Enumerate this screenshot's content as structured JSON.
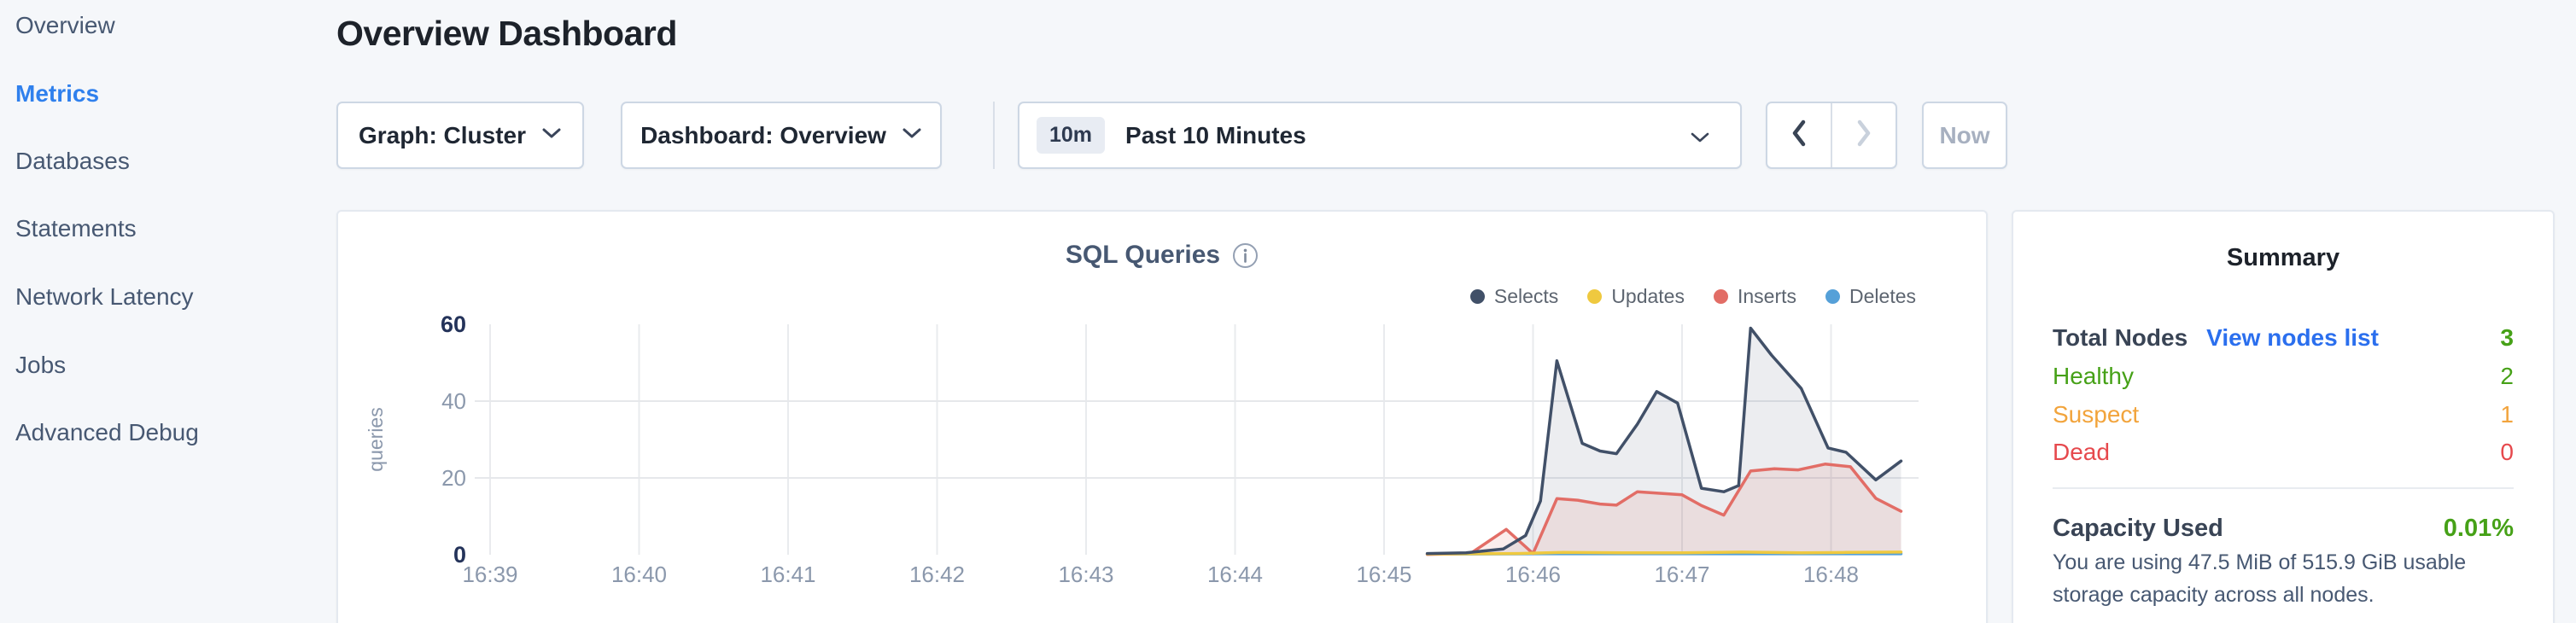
{
  "sidebar": {
    "items": [
      {
        "label": "Overview",
        "active": false
      },
      {
        "label": "Metrics",
        "active": true
      },
      {
        "label": "Databases",
        "active": false
      },
      {
        "label": "Statements",
        "active": false
      },
      {
        "label": "Network Latency",
        "active": false
      },
      {
        "label": "Jobs",
        "active": false
      },
      {
        "label": "Advanced Debug",
        "active": false
      }
    ]
  },
  "header": {
    "title": "Overview Dashboard"
  },
  "toolbar": {
    "graph_label": "Graph: Cluster",
    "dashboard_label": "Dashboard: Overview",
    "time_badge": "10m",
    "time_label": "Past 10 Minutes",
    "now_label": "Now"
  },
  "chart_data": {
    "type": "area",
    "title": "SQL Queries",
    "ylabel": "queries",
    "xlabel": "",
    "x_ticks": [
      "16:39",
      "16:40",
      "16:41",
      "16:42",
      "16:43",
      "16:44",
      "16:45",
      "16:46",
      "16:47",
      "16:48"
    ],
    "y_ticks": [
      0,
      20,
      40,
      60
    ],
    "ylim": [
      0,
      60
    ],
    "x_minutes_range": [
      0,
      9.47
    ],
    "grid": true,
    "legend_position": "top-right",
    "series": [
      {
        "name": "Selects",
        "color": "#415068",
        "fill": "rgba(65,80,104,0.10)",
        "points": [
          [
            6.29,
            0.3
          ],
          [
            6.55,
            0.5
          ],
          [
            6.8,
            1.5
          ],
          [
            6.95,
            5
          ],
          [
            7.05,
            14
          ],
          [
            7.16,
            50.5
          ],
          [
            7.33,
            29
          ],
          [
            7.45,
            27
          ],
          [
            7.56,
            26.3
          ],
          [
            7.7,
            34
          ],
          [
            7.83,
            42.5
          ],
          [
            7.97,
            39.5
          ],
          [
            8.13,
            17.3
          ],
          [
            8.28,
            16.4
          ],
          [
            8.38,
            18
          ],
          [
            8.46,
            59
          ],
          [
            8.6,
            52
          ],
          [
            8.8,
            43.3
          ],
          [
            8.98,
            27.8
          ],
          [
            9.1,
            26.7
          ],
          [
            9.3,
            19.5
          ],
          [
            9.47,
            24.4
          ]
        ]
      },
      {
        "name": "Updates",
        "color": "#efc93f",
        "fill": "none",
        "points": [
          [
            6.29,
            0.2
          ],
          [
            6.9,
            0.3
          ],
          [
            7.2,
            0.6
          ],
          [
            7.6,
            0.5
          ],
          [
            8.0,
            0.5
          ],
          [
            8.4,
            0.7
          ],
          [
            8.8,
            0.5
          ],
          [
            9.1,
            0.6
          ],
          [
            9.47,
            0.7
          ]
        ]
      },
      {
        "name": "Inserts",
        "color": "#e26d66",
        "fill": "rgba(226,109,102,0.12)",
        "points": [
          [
            6.29,
            0.1
          ],
          [
            6.58,
            0.3
          ],
          [
            6.82,
            6.6
          ],
          [
            7.0,
            0.3
          ],
          [
            7.16,
            14.6
          ],
          [
            7.3,
            14.2
          ],
          [
            7.45,
            13.2
          ],
          [
            7.56,
            12.9
          ],
          [
            7.7,
            16.4
          ],
          [
            7.85,
            16.0
          ],
          [
            8.0,
            15.6
          ],
          [
            8.13,
            12.8
          ],
          [
            8.28,
            10.3
          ],
          [
            8.46,
            21.8
          ],
          [
            8.62,
            22.4
          ],
          [
            8.78,
            22.1
          ],
          [
            8.96,
            23.6
          ],
          [
            9.13,
            22.9
          ],
          [
            9.3,
            14.7
          ],
          [
            9.47,
            11.3
          ]
        ]
      },
      {
        "name": "Deletes",
        "color": "#55a0d8",
        "fill": "none",
        "points": [
          [
            6.29,
            0.15
          ],
          [
            7.0,
            0.25
          ],
          [
            7.5,
            0.25
          ],
          [
            8.0,
            0.25
          ],
          [
            8.5,
            0.25
          ],
          [
            9.0,
            0.25
          ],
          [
            9.47,
            0.25
          ]
        ]
      }
    ]
  },
  "summary": {
    "title": "Summary",
    "total_nodes": {
      "label": "Total Nodes",
      "link": "View nodes list",
      "value": "3"
    },
    "statuses": [
      {
        "label": "Healthy",
        "value": "2",
        "color": "#46a117"
      },
      {
        "label": "Suspect",
        "value": "1",
        "color": "#f2a43c"
      },
      {
        "label": "Dead",
        "value": "0",
        "color": "#e6494d"
      }
    ],
    "capacity": {
      "label": "Capacity Used",
      "value": "0.01%",
      "description": "You are using 47.5 MiB of 515.9 GiB usable storage capacity across all nodes."
    }
  },
  "colors": {
    "accent_blue": "#2f80ed",
    "link_blue": "#2b6fee",
    "healthy_green": "#46a117",
    "suspect_orange": "#f2a43c",
    "dead_red": "#e6494d",
    "selects_navy": "#415068",
    "updates_yellow": "#efc93f",
    "inserts_red": "#e26d66",
    "deletes_blue": "#55a0d8"
  }
}
